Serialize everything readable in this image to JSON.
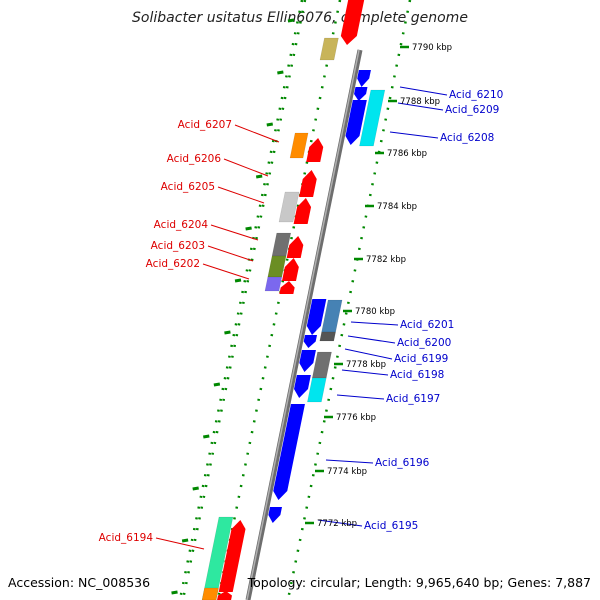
{
  "title": "Solibacter usitatus Ellin6076, complete genome",
  "footer": {
    "accession": "Accession: NC_008536",
    "summary": "Topology: circular; Length: 9,965,640 bp; Genes: 7,887"
  },
  "colors": {
    "left_label": "#dd0000",
    "right_label": "#0000cc",
    "backbone": "#888888",
    "tick": "#008800"
  },
  "kbp_labels": [
    {
      "text": "7790 kbp",
      "kbp": 7790
    },
    {
      "text": "7788 kbp",
      "kbp": 7788
    },
    {
      "text": "7786 kbp",
      "kbp": 7786
    },
    {
      "text": "7784 kbp",
      "kbp": 7784
    },
    {
      "text": "7782 kbp",
      "kbp": 7782
    },
    {
      "text": "7780 kbp",
      "kbp": 7780
    },
    {
      "text": "7778 kbp",
      "kbp": 7778
    },
    {
      "text": "7776 kbp",
      "kbp": 7776
    },
    {
      "text": "7774 kbp",
      "kbp": 7774
    },
    {
      "text": "7772 kbp",
      "kbp": 7772
    }
  ],
  "left_genes": [
    {
      "label": "Acid_6207",
      "color": "#ff8c00"
    },
    {
      "label": "Acid_6206",
      "color": "#ff0000"
    },
    {
      "label": "Acid_6205",
      "color": "#c8c8c8"
    },
    {
      "label": "Acid_6204",
      "color": "#707070"
    },
    {
      "label": "Acid_6203",
      "color": "#6b8e23"
    },
    {
      "label": "Acid_6202",
      "color": "#7b68ee"
    },
    {
      "label": "Acid_6194",
      "color": "#2ee8a0"
    }
  ],
  "right_genes": [
    {
      "label": "Acid_6210",
      "color": "#0000ff"
    },
    {
      "label": "Acid_6209",
      "color": "#0000ff"
    },
    {
      "label": "Acid_6208",
      "color": "#00e5ee"
    },
    {
      "label": "Acid_6201",
      "color": "#4682b4"
    },
    {
      "label": "Acid_6200",
      "color": "#0000ff"
    },
    {
      "label": "Acid_6199",
      "color": "#555555"
    },
    {
      "label": "Acid_6198",
      "color": "#707070"
    },
    {
      "label": "Acid_6197",
      "color": "#00e5ee"
    },
    {
      "label": "Acid_6196",
      "color": "#0000ff"
    },
    {
      "label": "Acid_6195",
      "color": "#0000ff"
    }
  ]
}
